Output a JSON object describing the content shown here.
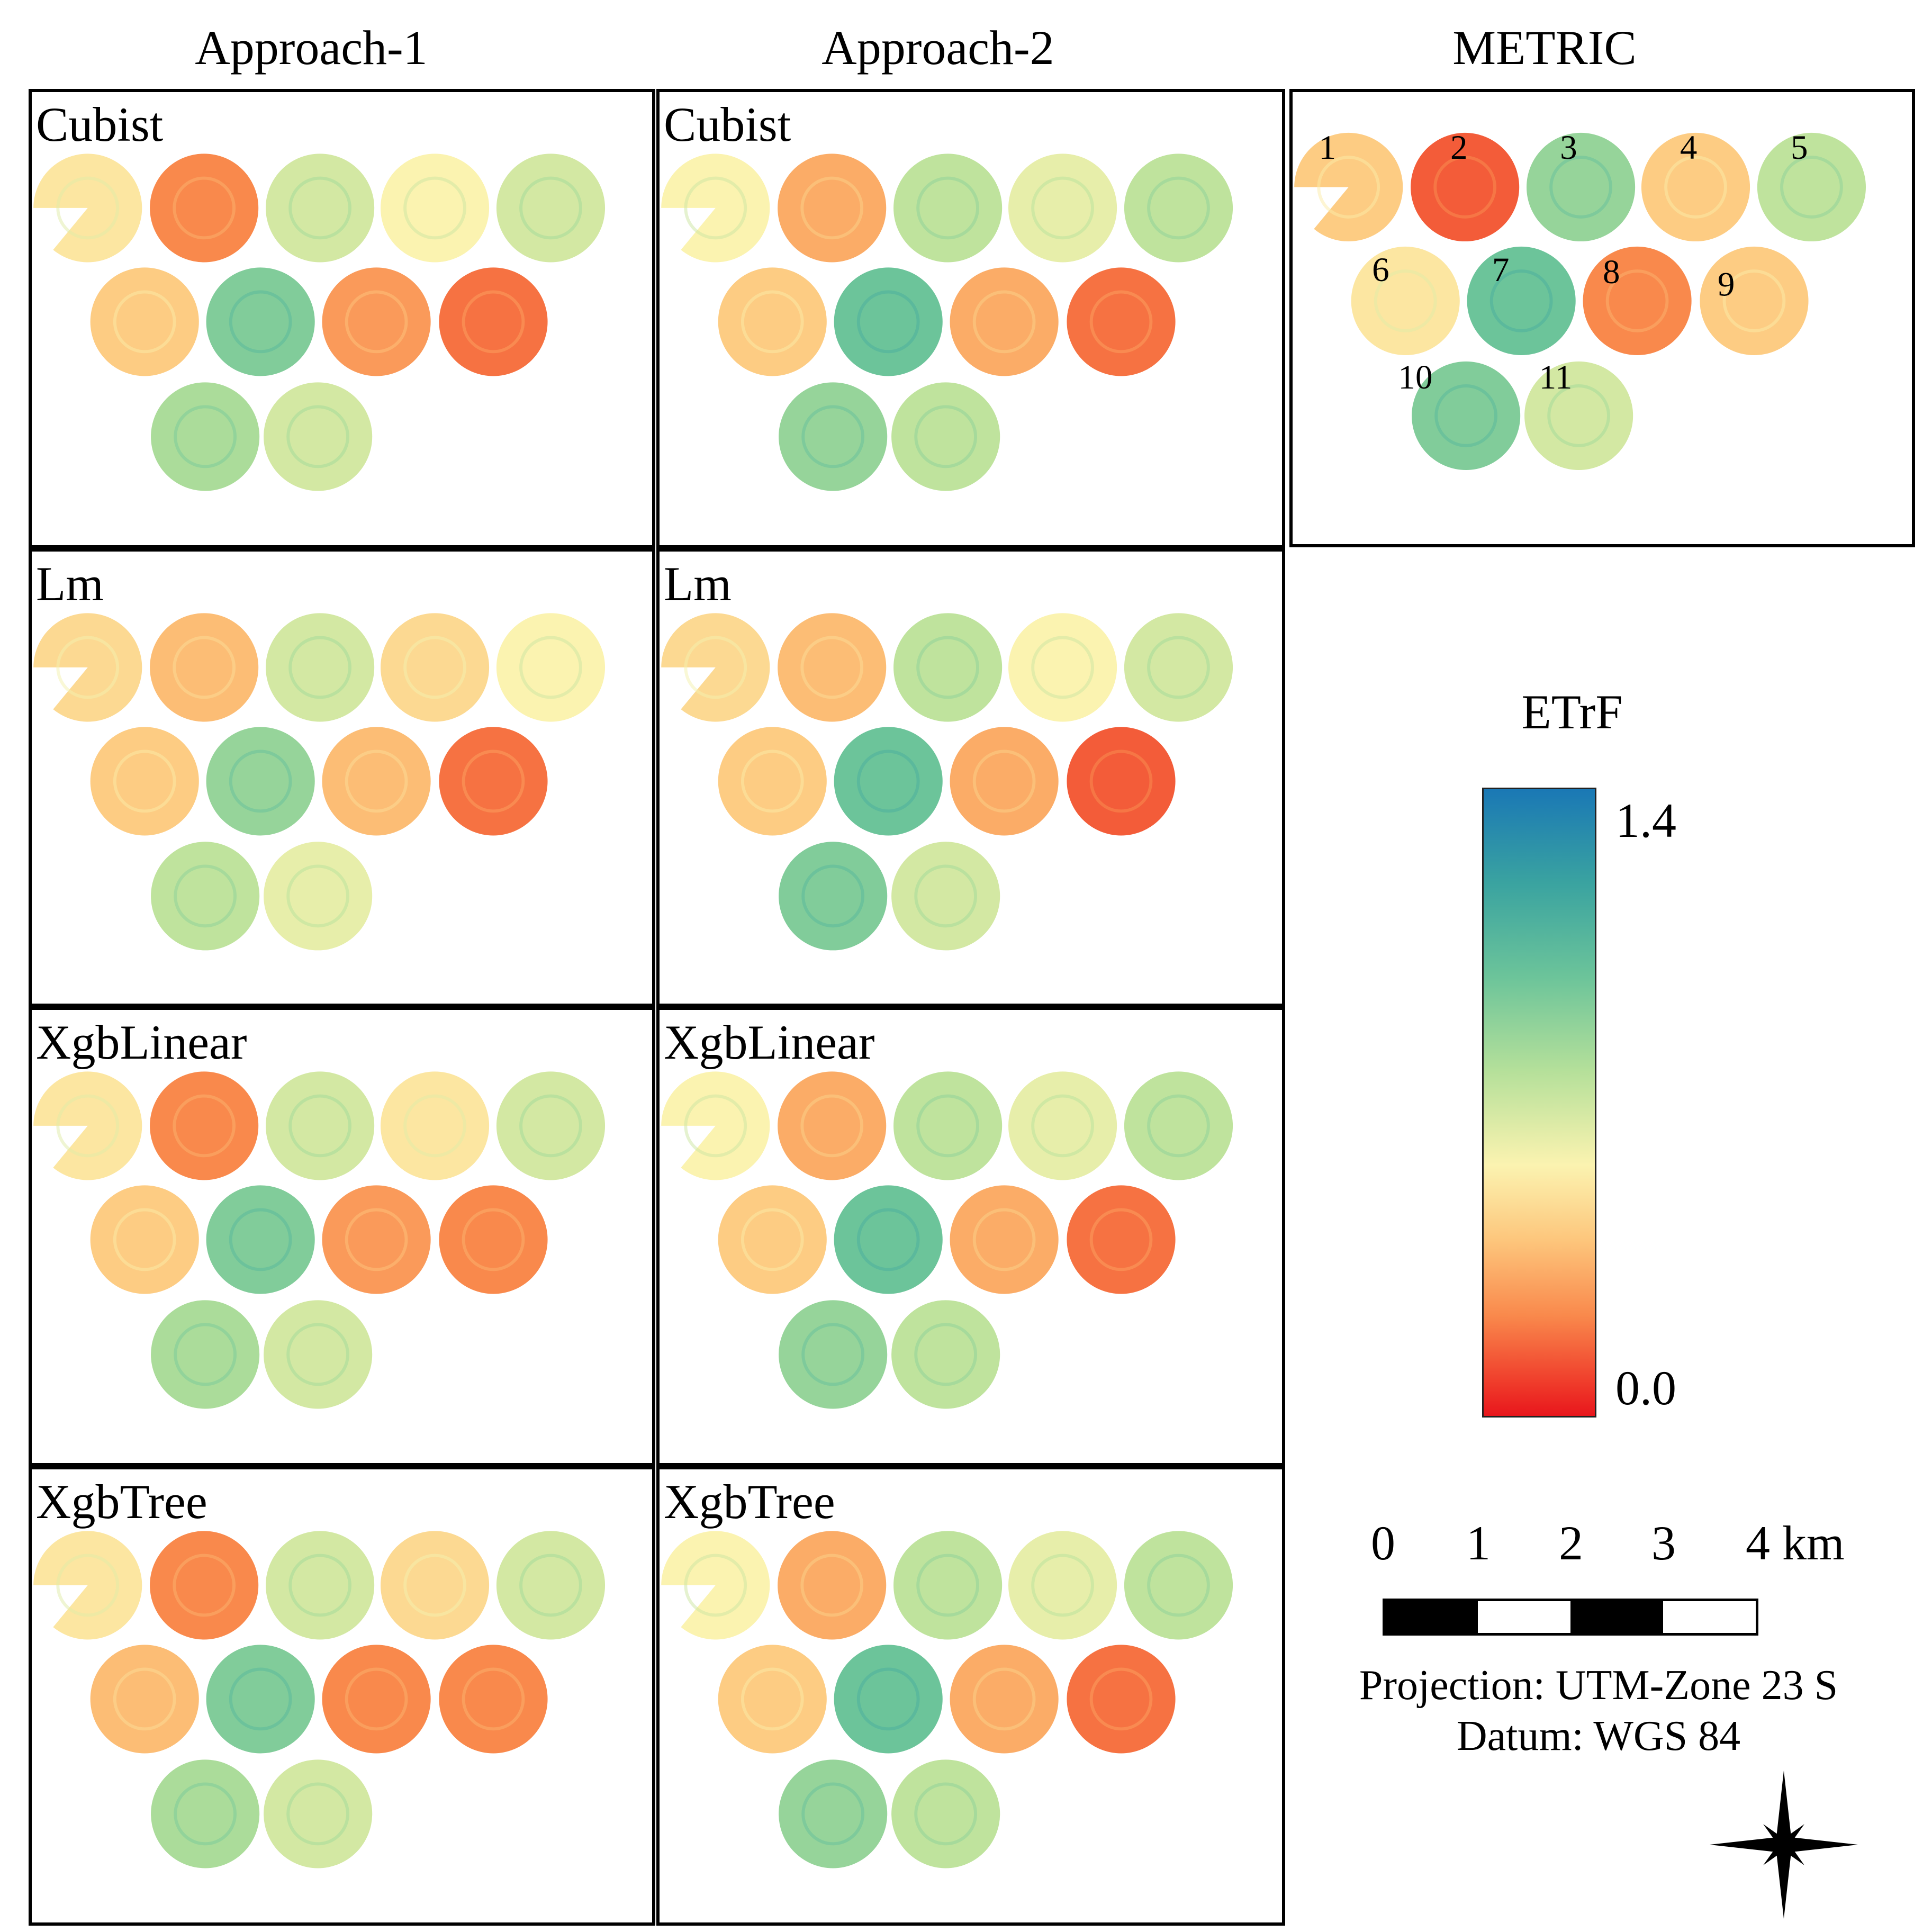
{
  "columns": [
    "Approach-1",
    "Approach-2",
    "METRIC"
  ],
  "models": [
    "Cubist",
    "Lm",
    "XgbLinear",
    "XgbTree"
  ],
  "field_numbers": [
    "1",
    "2",
    "3",
    "4",
    "5",
    "6",
    "7",
    "8",
    "9",
    "10",
    "11"
  ],
  "legend": {
    "title": "ETrF",
    "max_label": "1.4",
    "min_label": "0.0",
    "colors": [
      "#1a78b5",
      "#3aa3a0",
      "#6cc49a",
      "#b5e09a",
      "#fbf3b0",
      "#fdc67c",
      "#f9894c",
      "#ef3a2a",
      "#e8161c"
    ]
  },
  "scale": {
    "labels": [
      "0",
      "1",
      "2",
      "3",
      "4 km"
    ],
    "segment_colors": [
      "#000000",
      "#ffffff",
      "#000000",
      "#ffffff"
    ]
  },
  "projection": "Projection: UTM-Zone 23 S",
  "datum": "Datum: WGS 84",
  "fields_etrf": {
    "METRIC": [
      0.55,
      0.25,
      0.95,
      0.55,
      0.85,
      0.65,
      1.05,
      0.35,
      0.55,
      1.0,
      0.8
    ],
    "Approach-1|Cubist": [
      0.65,
      0.35,
      0.8,
      0.7,
      0.8,
      0.55,
      1.0,
      0.4,
      0.3,
      0.9,
      0.8
    ],
    "Approach-2|Cubist": [
      0.7,
      0.45,
      0.85,
      0.75,
      0.85,
      0.55,
      1.05,
      0.45,
      0.3,
      0.95,
      0.85
    ],
    "Approach-1|Lm": [
      0.6,
      0.5,
      0.8,
      0.6,
      0.7,
      0.55,
      0.95,
      0.5,
      0.3,
      0.85,
      0.75
    ],
    "Approach-2|Lm": [
      0.6,
      0.5,
      0.85,
      0.7,
      0.8,
      0.55,
      1.05,
      0.45,
      0.25,
      1.0,
      0.8
    ],
    "Approach-1|XgbLinear": [
      0.65,
      0.35,
      0.8,
      0.65,
      0.8,
      0.55,
      1.0,
      0.4,
      0.35,
      0.9,
      0.8
    ],
    "Approach-2|XgbLinear": [
      0.7,
      0.45,
      0.85,
      0.75,
      0.85,
      0.55,
      1.05,
      0.45,
      0.3,
      0.95,
      0.85
    ],
    "Approach-1|XgbTree": [
      0.65,
      0.35,
      0.8,
      0.6,
      0.8,
      0.5,
      1.0,
      0.35,
      0.35,
      0.9,
      0.8
    ],
    "Approach-2|XgbTree": [
      0.7,
      0.45,
      0.85,
      0.75,
      0.85,
      0.55,
      1.05,
      0.45,
      0.3,
      0.95,
      0.85
    ]
  }
}
